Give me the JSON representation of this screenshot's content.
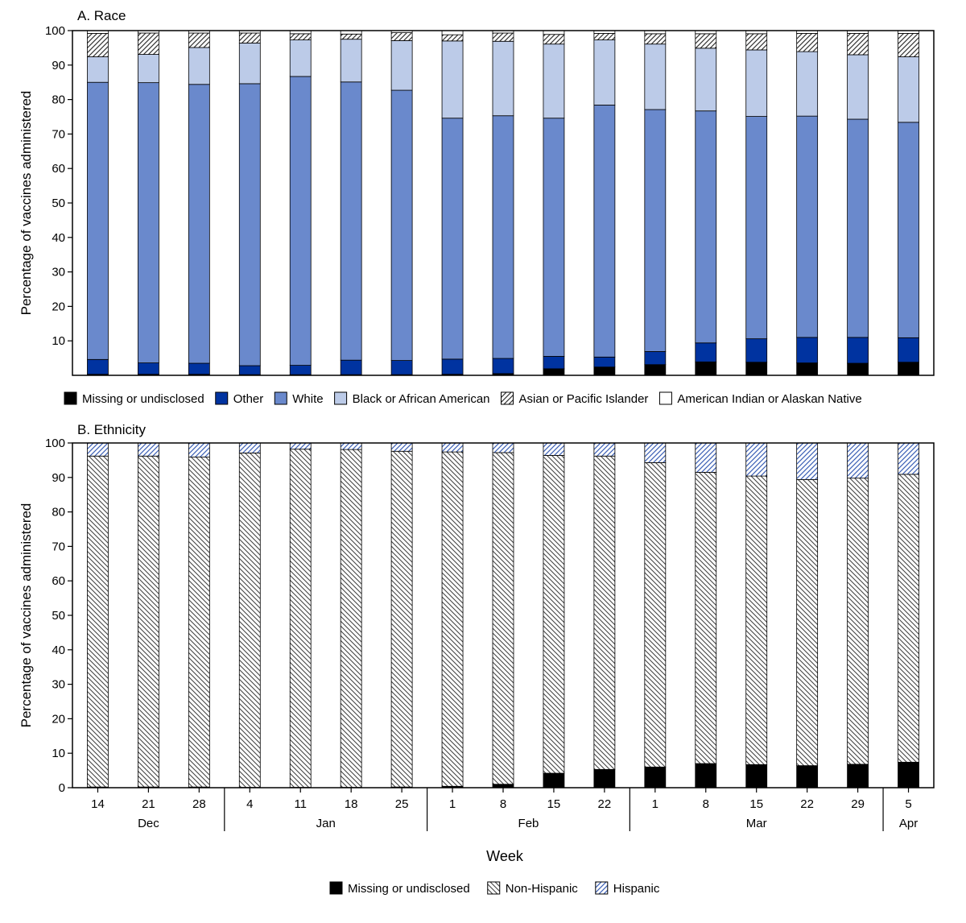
{
  "week_label": "Week",
  "weeks": [
    "14",
    "21",
    "28",
    "4",
    "11",
    "18",
    "25",
    "1",
    "8",
    "15",
    "22",
    "1",
    "8",
    "15",
    "22",
    "29",
    "5"
  ],
  "months": [
    {
      "label": "Dec",
      "start": 0,
      "end": 2
    },
    {
      "label": "Jan",
      "start": 3,
      "end": 6
    },
    {
      "label": "Feb",
      "start": 7,
      "end": 10
    },
    {
      "label": "Mar",
      "start": 11,
      "end": 15
    },
    {
      "label": "Apr",
      "start": 16,
      "end": 16
    }
  ],
  "colors": {
    "missing": "#000000",
    "other": "#0033a0",
    "white": "#6a89cc",
    "black": "#bccbe8",
    "asian_hatch": "#333333",
    "aian": "#ffffff",
    "nonhispanic_hatch": "#444444",
    "hispanic_hatch": "#3b5fb5"
  },
  "chart_data": [
    {
      "type": "bar",
      "stacked": true,
      "title": "A. Race",
      "xlabel": "Week",
      "ylabel": "Percentage of vaccines administered",
      "ylim": [
        0,
        100
      ],
      "yticks": [
        10,
        20,
        30,
        40,
        50,
        60,
        70,
        80,
        90,
        100
      ],
      "categories": [
        "14",
        "21",
        "28",
        "4",
        "11",
        "18",
        "25",
        "1",
        "8",
        "15",
        "22",
        "1",
        "8",
        "15",
        "22",
        "29",
        "5"
      ],
      "legend_position": "bottom",
      "series": [
        {
          "name": "Missing or undisclosed",
          "key": "missing",
          "fill": "solid",
          "values": [
            0.3,
            0.3,
            0.3,
            0.2,
            0.2,
            0.2,
            0.2,
            0.3,
            0.5,
            1.9,
            2.4,
            3.1,
            3.9,
            3.8,
            3.6,
            3.5,
            3.8
          ]
        },
        {
          "name": "Other",
          "key": "other",
          "fill": "solid",
          "values": [
            4.3,
            3.3,
            3.2,
            2.6,
            2.7,
            4.2,
            4.1,
            4.4,
            4.4,
            3.6,
            2.9,
            3.8,
            5.5,
            6.8,
            7.4,
            7.5,
            7.1
          ]
        },
        {
          "name": "White",
          "key": "white",
          "fill": "solid",
          "values": [
            80.4,
            81.3,
            80.9,
            81.8,
            83.8,
            80.7,
            78.4,
            69.9,
            70.4,
            69.1,
            73.1,
            70.2,
            67.3,
            64.5,
            64.2,
            63.3,
            62.5
          ]
        },
        {
          "name": "Black or African American",
          "key": "black",
          "fill": "solid",
          "values": [
            7.4,
            8.2,
            10.7,
            11.8,
            10.6,
            12.4,
            14.4,
            22.4,
            21.6,
            21.5,
            18.9,
            19.0,
            18.2,
            19.3,
            18.7,
            18.7,
            19.0
          ]
        },
        {
          "name": "Asian or Pacific Islander",
          "key": "asian",
          "fill": "hatch",
          "values": [
            6.8,
            6.2,
            4.2,
            2.9,
            1.8,
            1.5,
            2.3,
            1.8,
            2.4,
            2.8,
            1.9,
            3.0,
            4.2,
            4.7,
            5.3,
            6.2,
            6.8
          ]
        },
        {
          "name": "American Indian or Alaskan Native",
          "key": "aian",
          "fill": "open",
          "values": [
            0.8,
            0.7,
            0.7,
            0.7,
            0.9,
            1.0,
            0.6,
            1.2,
            0.7,
            1.1,
            0.8,
            0.9,
            0.9,
            0.9,
            0.8,
            0.8,
            0.8
          ]
        }
      ]
    },
    {
      "type": "bar",
      "stacked": true,
      "title": "B. Ethnicity",
      "xlabel": "Week",
      "ylabel": "Percentage of vaccines administered",
      "ylim": [
        0,
        100
      ],
      "yticks": [
        0,
        10,
        20,
        30,
        40,
        50,
        60,
        70,
        80,
        90,
        100
      ],
      "categories": [
        "14",
        "21",
        "28",
        "4",
        "11",
        "18",
        "25",
        "1",
        "8",
        "15",
        "22",
        "1",
        "8",
        "15",
        "22",
        "29",
        "5"
      ],
      "legend_position": "bottom",
      "series": [
        {
          "name": "Missing or undisclosed",
          "key": "missing",
          "fill": "solid",
          "values": [
            0.2,
            0.2,
            0.2,
            0.1,
            0.1,
            0.1,
            0.2,
            0.4,
            1.0,
            4.2,
            5.3,
            6.0,
            7.0,
            6.7,
            6.4,
            6.8,
            7.4
          ]
        },
        {
          "name": "Non-Hispanic",
          "key": "nonhispanic",
          "fill": "hatch",
          "values": [
            96.0,
            96.0,
            95.7,
            97.0,
            98.1,
            98.0,
            97.4,
            97.0,
            96.2,
            92.2,
            90.9,
            88.3,
            84.5,
            83.7,
            83.0,
            83.0,
            83.5
          ]
        },
        {
          "name": "Hispanic",
          "key": "hispanic",
          "fill": "hatch",
          "values": [
            3.8,
            3.8,
            4.1,
            2.9,
            1.8,
            1.9,
            2.4,
            2.6,
            2.8,
            3.6,
            3.8,
            5.7,
            8.5,
            9.6,
            10.6,
            10.2,
            9.1
          ]
        }
      ]
    }
  ]
}
